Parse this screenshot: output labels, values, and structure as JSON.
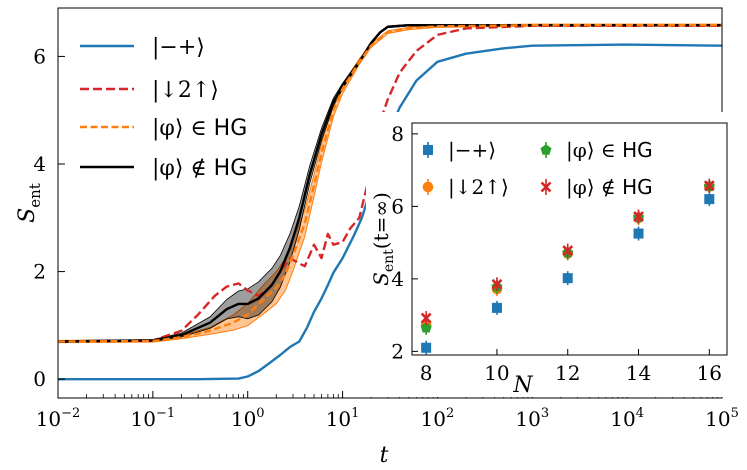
{
  "chart_data": [
    {
      "type": "line",
      "xscale": "log",
      "xlim": [
        0.01,
        100000
      ],
      "ylim": [
        -0.35,
        6.9
      ],
      "xlabel": "t",
      "ylabel": "S_ent",
      "xticks": [
        0.01,
        0.1,
        1,
        10,
        100,
        1000,
        10000,
        100000
      ],
      "xtick_labels": [
        {
          "base": "10",
          "exp": "−2"
        },
        {
          "base": "10",
          "exp": "−1"
        },
        {
          "base": "10",
          "exp": "0"
        },
        {
          "base": "10",
          "exp": "1"
        },
        {
          "base": "10",
          "exp": "2"
        },
        {
          "base": "10",
          "exp": "3"
        },
        {
          "base": "10",
          "exp": "4"
        },
        {
          "base": "10",
          "exp": "5"
        }
      ],
      "yticks": [
        0,
        2,
        4,
        6
      ],
      "ytick_labels": [
        "0",
        "2",
        "4",
        "6"
      ],
      "legend_position": "top-left",
      "series": [
        {
          "name": "|−+⟩",
          "color": "#1f77b4",
          "dash": "solid",
          "points": [
            [
              0.01,
              0
            ],
            [
              0.3,
              0
            ],
            [
              0.8,
              0.01
            ],
            [
              1,
              0.05
            ],
            [
              1.3,
              0.15
            ],
            [
              1.7,
              0.3
            ],
            [
              2.2,
              0.45
            ],
            [
              2.8,
              0.6
            ],
            [
              3.5,
              0.7
            ],
            [
              4.2,
              0.95
            ],
            [
              5,
              1.25
            ],
            [
              6,
              1.5
            ],
            [
              7,
              1.75
            ],
            [
              8,
              1.98
            ],
            [
              10,
              2.25
            ],
            [
              13,
              2.65
            ],
            [
              16,
              3.0
            ],
            [
              20,
              3.55
            ],
            [
              25,
              4.1
            ],
            [
              30,
              4.55
            ],
            [
              40,
              5.05
            ],
            [
              60,
              5.55
            ],
            [
              100,
              5.9
            ],
            [
              200,
              6.05
            ],
            [
              500,
              6.15
            ],
            [
              1000,
              6.2
            ],
            [
              10000,
              6.22
            ],
            [
              100000,
              6.2
            ]
          ]
        },
        {
          "name": "|↓2↑⟩",
          "color": "#d62728",
          "dash": "dashed",
          "points": [
            [
              0.01,
              0.7
            ],
            [
              0.1,
              0.72
            ],
            [
              0.2,
              0.9
            ],
            [
              0.3,
              1.2
            ],
            [
              0.45,
              1.55
            ],
            [
              0.6,
              1.72
            ],
            [
              0.8,
              1.78
            ],
            [
              1,
              1.65
            ],
            [
              1.3,
              1.55
            ],
            [
              1.7,
              1.7
            ],
            [
              2.2,
              2.0
            ],
            [
              2.8,
              2.25
            ],
            [
              3.5,
              2.15
            ],
            [
              4,
              2.1
            ],
            [
              5,
              2.5
            ],
            [
              6,
              2.25
            ],
            [
              7,
              2.7
            ],
            [
              8,
              2.5
            ],
            [
              10,
              2.55
            ],
            [
              12,
              2.8
            ],
            [
              15,
              3.0
            ],
            [
              20,
              3.9
            ],
            [
              25,
              4.8
            ],
            [
              30,
              5.2
            ],
            [
              40,
              5.7
            ],
            [
              60,
              6.1
            ],
            [
              100,
              6.4
            ],
            [
              200,
              6.52
            ],
            [
              1000,
              6.57
            ],
            [
              100000,
              6.57
            ]
          ]
        },
        {
          "name": "|φ⟩ ∈ HG",
          "color": "#ff7f0e",
          "dash": "dashed",
          "band": true,
          "points": [
            [
              0.01,
              0.7
            ],
            [
              0.1,
              0.71
            ],
            [
              0.2,
              0.78
            ],
            [
              0.4,
              0.9
            ],
            [
              0.7,
              1.05
            ],
            [
              1,
              1.2
            ],
            [
              1.5,
              1.5
            ],
            [
              2,
              1.7
            ],
            [
              2.5,
              1.95
            ],
            [
              3,
              2.3
            ],
            [
              4,
              2.9
            ],
            [
              5,
              3.6
            ],
            [
              6,
              4.2
            ],
            [
              8,
              5.0
            ],
            [
              10,
              5.4
            ],
            [
              15,
              5.9
            ],
            [
              20,
              6.2
            ],
            [
              30,
              6.45
            ],
            [
              50,
              6.52
            ],
            [
              100,
              6.56
            ],
            [
              1000,
              6.58
            ],
            [
              100000,
              6.58
            ]
          ]
        },
        {
          "name": "|φ⟩ ∉ HG",
          "color": "#000000",
          "dash": "solid",
          "band": true,
          "points": [
            [
              0.01,
              0.7
            ],
            [
              0.1,
              0.72
            ],
            [
              0.2,
              0.82
            ],
            [
              0.4,
              1.05
            ],
            [
              0.6,
              1.3
            ],
            [
              0.8,
              1.4
            ],
            [
              1,
              1.4
            ],
            [
              1.3,
              1.5
            ],
            [
              1.8,
              1.75
            ],
            [
              2.2,
              2.0
            ],
            [
              2.8,
              2.45
            ],
            [
              3.5,
              3.0
            ],
            [
              4.5,
              3.8
            ],
            [
              6,
              4.55
            ],
            [
              8,
              5.15
            ],
            [
              10,
              5.45
            ],
            [
              15,
              5.9
            ],
            [
              20,
              6.25
            ],
            [
              25,
              6.45
            ],
            [
              30,
              6.55
            ],
            [
              50,
              6.58
            ],
            [
              100,
              6.58
            ],
            [
              100000,
              6.58
            ]
          ]
        }
      ],
      "legend": [
        "|−+⟩",
        "|↓2↑⟩",
        "|φ⟩ ∈ HG",
        "|φ⟩ ∉ HG"
      ]
    },
    {
      "type": "scatter",
      "xlabel": "N",
      "ylabel": "S_ent(t=∞)",
      "xlim": [
        7.6,
        16.5
      ],
      "ylim": [
        1.9,
        8.3
      ],
      "xticks": [
        8,
        10,
        12,
        14,
        16
      ],
      "xtick_labels": [
        "8",
        "10",
        "12",
        "14",
        "16"
      ],
      "yticks": [
        2,
        4,
        6,
        8
      ],
      "ytick_labels": [
        "2",
        "4",
        "6",
        "8"
      ],
      "legend_position": "top",
      "series": [
        {
          "name": "|−+⟩",
          "marker": "square",
          "color": "#1f77b4",
          "x": [
            8,
            10,
            12,
            14,
            16
          ],
          "values": [
            2.1,
            3.2,
            4.02,
            5.25,
            6.2
          ]
        },
        {
          "name": "|↓2↑⟩",
          "marker": "circle",
          "color": "#ff7f0e",
          "x": [
            8,
            10,
            12,
            14,
            16
          ],
          "values": [
            2.75,
            3.72,
            4.7,
            5.68,
            6.55
          ]
        },
        {
          "name": "|φ⟩ ∈ HG",
          "marker": "pentagon",
          "color": "#2ca02c",
          "x": [
            8,
            10,
            12,
            14,
            16
          ],
          "values": [
            2.65,
            3.78,
            4.72,
            5.7,
            6.55
          ]
        },
        {
          "name": "|φ⟩ ∉ HG",
          "marker": "x",
          "color": "#d62728",
          "x": [
            8,
            10,
            12,
            14,
            16
          ],
          "values": [
            2.92,
            3.85,
            4.78,
            5.72,
            6.57
          ]
        }
      ],
      "legend": [
        "|−+⟩",
        "|↓2↑⟩",
        "|φ⟩ ∈ HG",
        "|φ⟩ ∉ HG"
      ]
    }
  ]
}
